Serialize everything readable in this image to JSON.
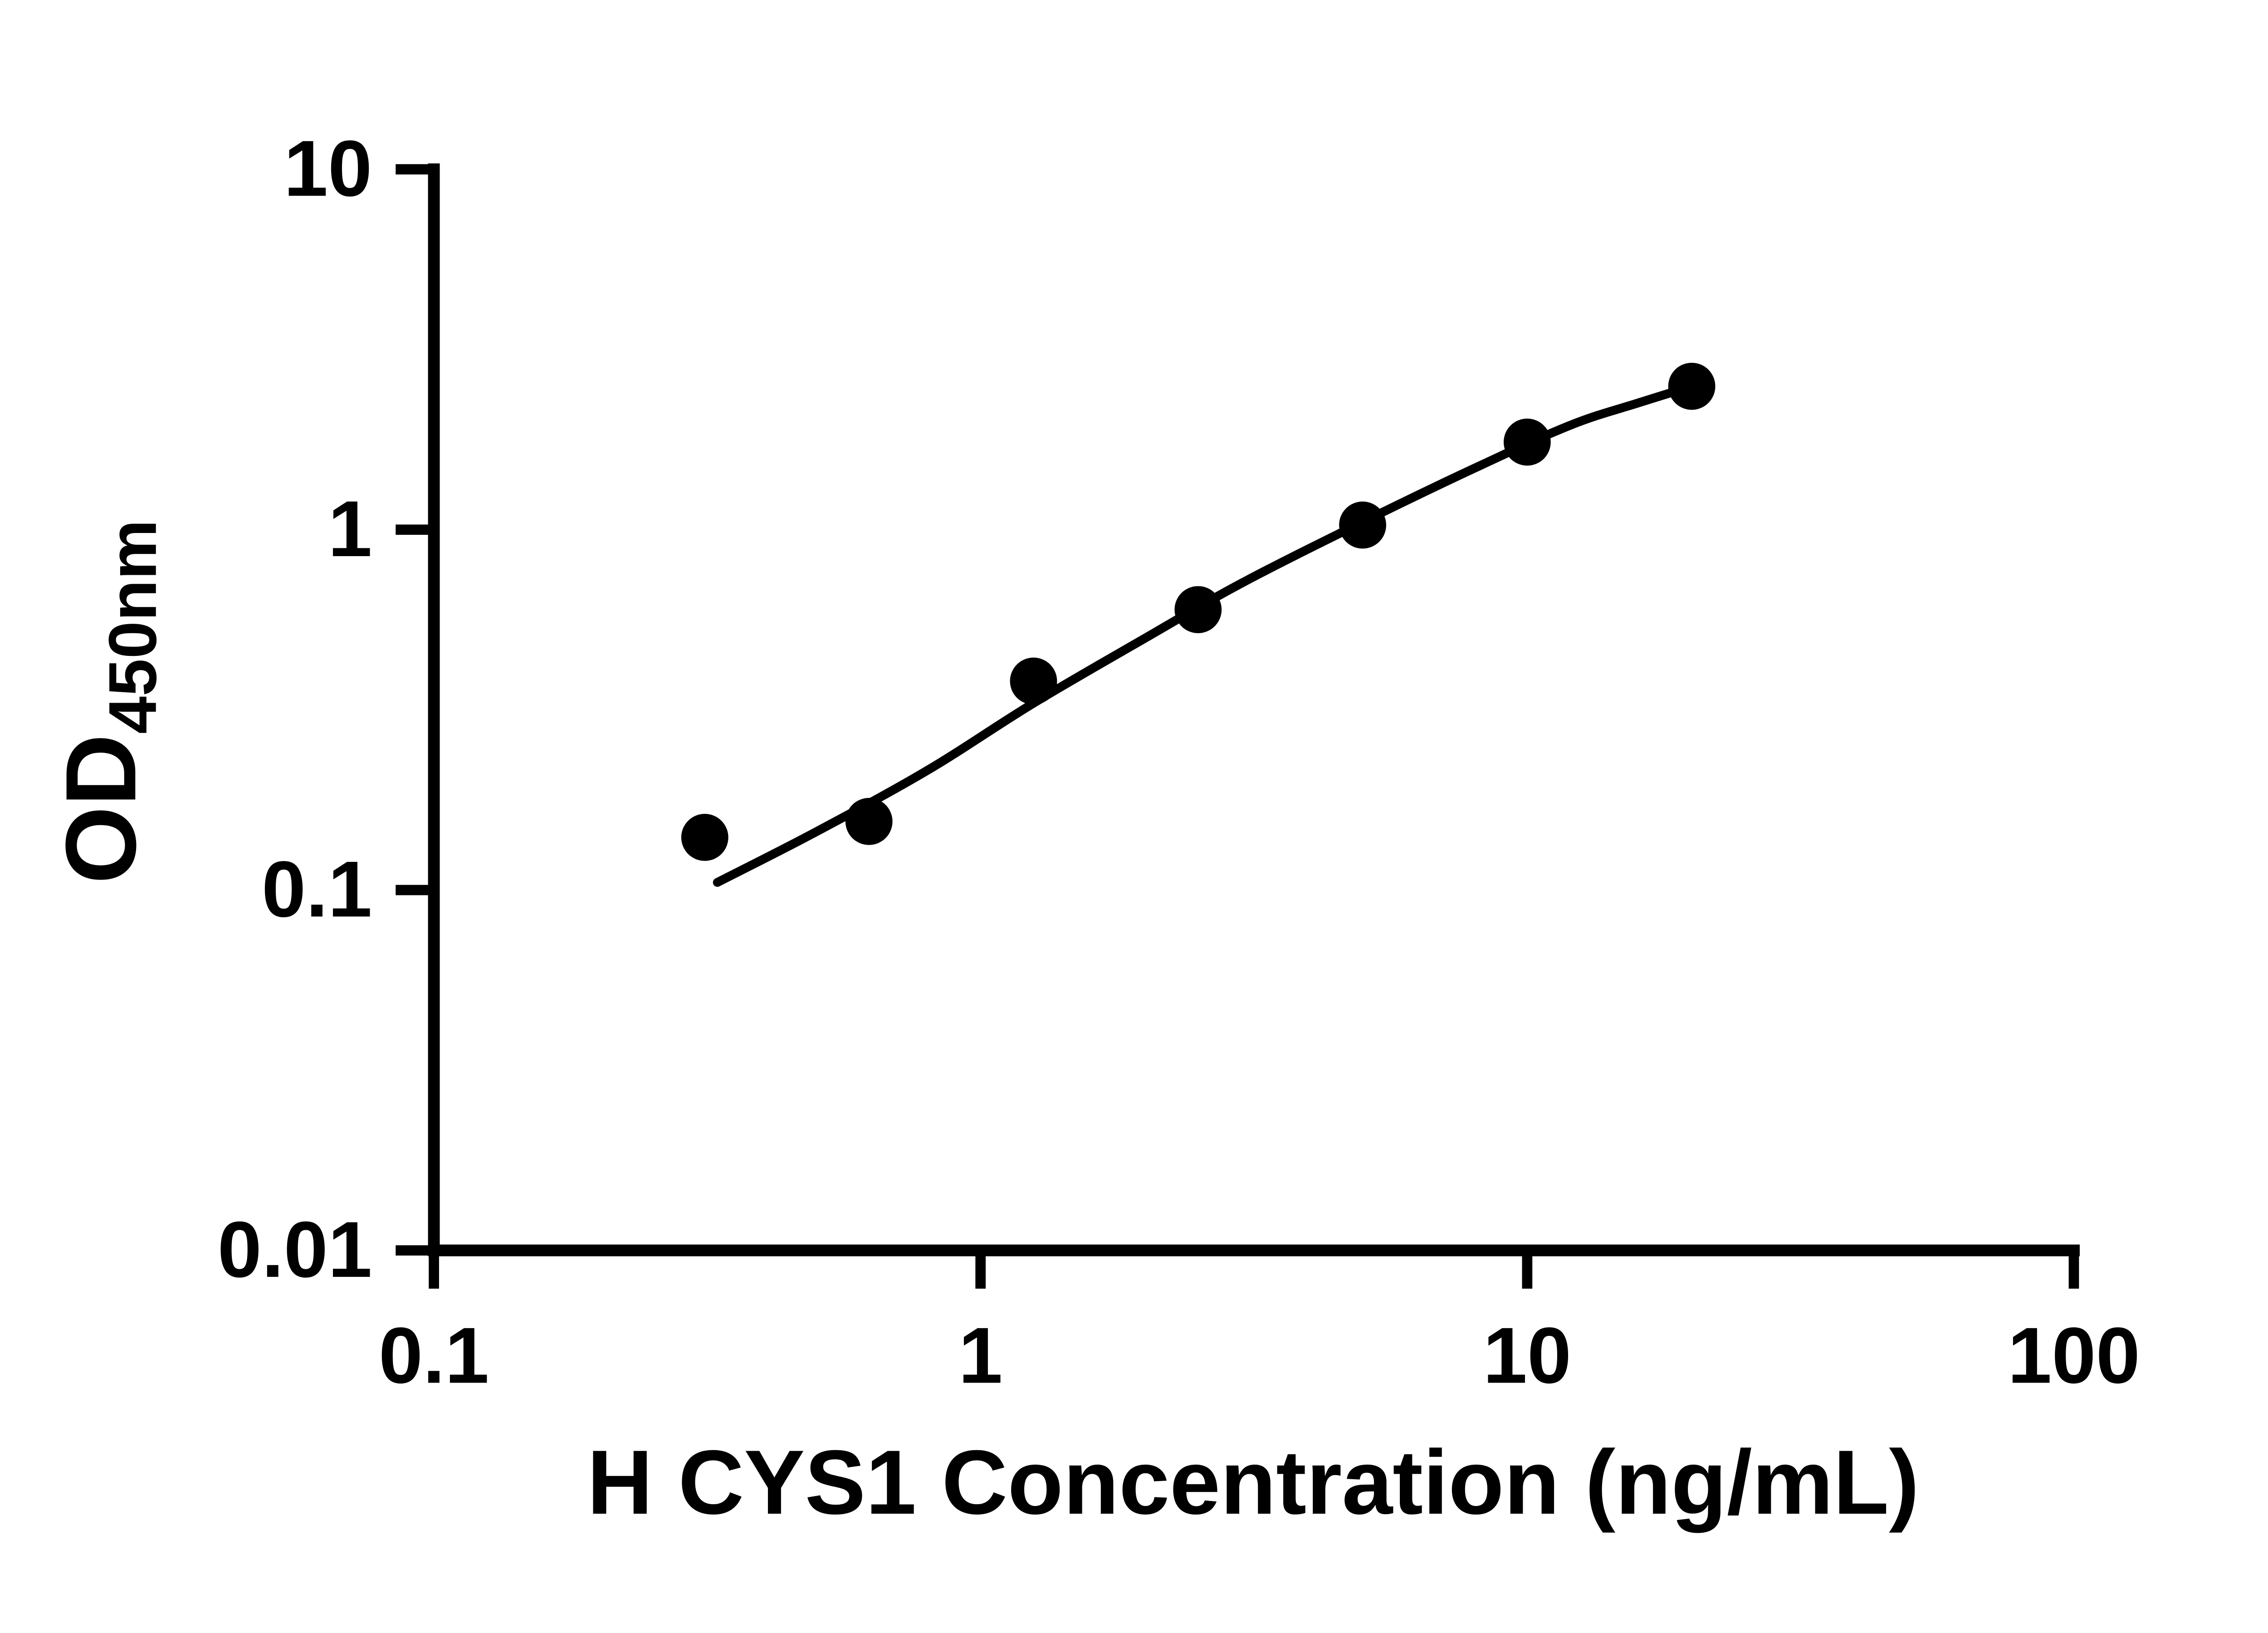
{
  "figure": {
    "background_color": "#ffffff",
    "line_color": "#000000",
    "marker_color": "#000000"
  },
  "chart_data": {
    "type": "scatter",
    "title": "",
    "xlabel": "H CYS1 Concentration (ng/mL)",
    "ylabel": "OD450nm",
    "ylabel_main": "OD",
    "ylabel_sub": "450nm",
    "x_scale": "log",
    "y_scale": "log",
    "xlim": [
      0.1,
      100
    ],
    "ylim": [
      0.01,
      10
    ],
    "x_ticks": [
      0.1,
      1,
      10,
      100
    ],
    "x_tick_labels": [
      "0.1",
      "1",
      "10",
      "100"
    ],
    "y_ticks": [
      0.01,
      0.1,
      1,
      10
    ],
    "y_tick_labels": [
      "0.01",
      "0.1",
      "1",
      "10"
    ],
    "grid": false,
    "legend": "none",
    "series": [
      {
        "name": "standard-points",
        "type": "scatter",
        "marker": "circle",
        "color": "#000000",
        "points": [
          {
            "x": 0.313,
            "y": 0.14
          },
          {
            "x": 0.625,
            "y": 0.155
          },
          {
            "x": 1.25,
            "y": 0.38
          },
          {
            "x": 2.5,
            "y": 0.6
          },
          {
            "x": 5,
            "y": 1.03
          },
          {
            "x": 10,
            "y": 1.75
          },
          {
            "x": 20,
            "y": 2.5
          }
        ]
      },
      {
        "name": "fit-line",
        "type": "line",
        "color": "#000000",
        "points": [
          {
            "x": 0.33,
            "y": 0.105
          },
          {
            "x": 0.5,
            "y": 0.145
          },
          {
            "x": 0.8,
            "y": 0.215
          },
          {
            "x": 1.25,
            "y": 0.33
          },
          {
            "x": 2.0,
            "y": 0.5
          },
          {
            "x": 3.0,
            "y": 0.71
          },
          {
            "x": 5.0,
            "y": 1.05
          },
          {
            "x": 8.0,
            "y": 1.48
          },
          {
            "x": 12.0,
            "y": 1.95
          },
          {
            "x": 16.0,
            "y": 2.25
          },
          {
            "x": 20.0,
            "y": 2.5
          }
        ]
      }
    ]
  }
}
